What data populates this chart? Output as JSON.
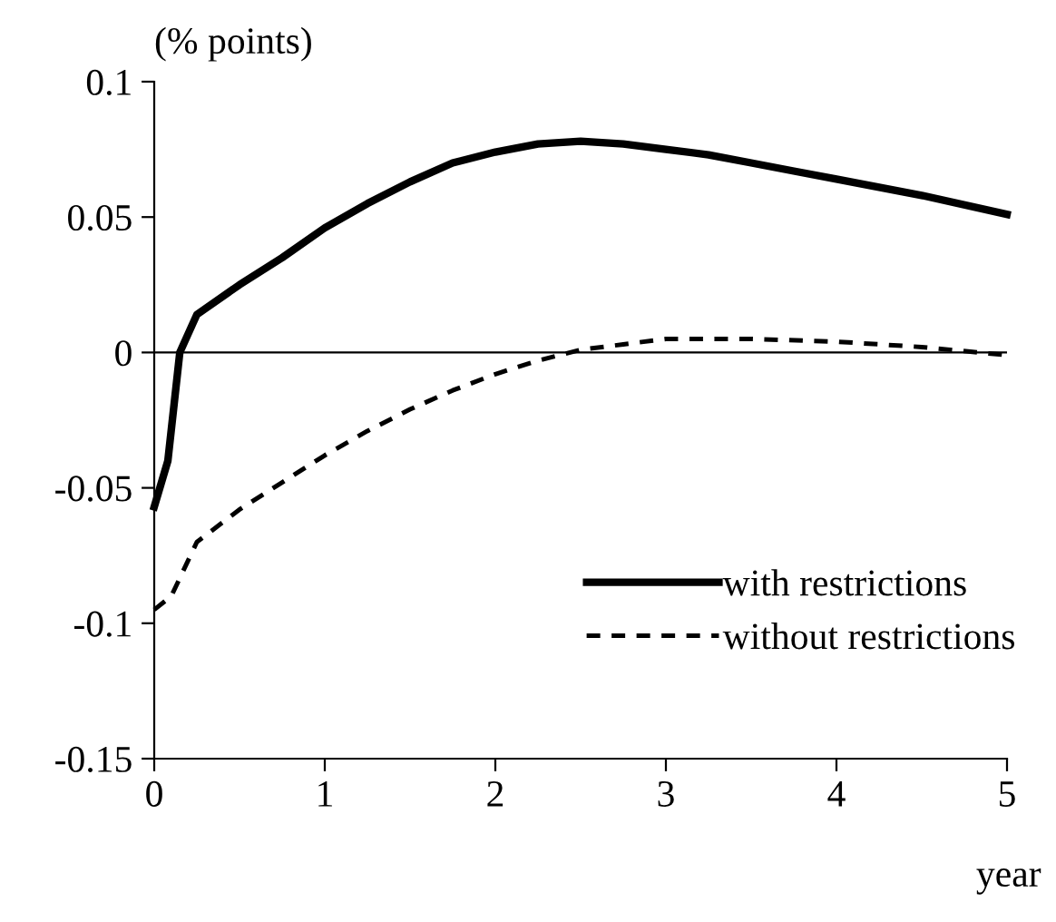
{
  "chart_data": {
    "type": "line",
    "ylabel": "(% points)",
    "xlabel": "year",
    "xlim": [
      0,
      5
    ],
    "xticks": [
      0,
      1,
      2,
      3,
      4,
      5
    ],
    "ylim": [
      -0.15,
      0.1
    ],
    "yticks": [
      -0.15,
      -0.1,
      -0.05,
      0,
      0.05,
      0.1
    ],
    "grid": false,
    "legend": "bottom right",
    "marker": "none",
    "ref_lines": [
      {
        "axis": "y",
        "value": 0,
        "color": "#000000",
        "line_style": "solid"
      }
    ],
    "series": [
      {
        "name": "with restrictions",
        "color": "#000000",
        "line_style": "solid",
        "x": [
          0,
          0.08,
          0.15,
          0.25,
          0.5,
          0.75,
          1,
          1.25,
          1.5,
          1.75,
          2,
          2.25,
          2.5,
          2.75,
          3,
          3.25,
          3.5,
          3.75,
          4,
          4.5,
          5
        ],
        "values": [
          -0.057,
          -0.04,
          0.0,
          0.014,
          0.025,
          0.035,
          0.046,
          0.055,
          0.063,
          0.07,
          0.074,
          0.077,
          0.078,
          0.077,
          0.075,
          0.073,
          0.07,
          0.067,
          0.064,
          0.058,
          0.051
        ]
      },
      {
        "name": "without restrictions",
        "color": "#000000",
        "line_style": "dotted",
        "x": [
          0,
          0.1,
          0.25,
          0.5,
          0.75,
          1,
          1.25,
          1.5,
          1.75,
          2,
          2.25,
          2.5,
          2.75,
          3,
          3.25,
          3.5,
          4,
          4.5,
          5
        ],
        "values": [
          -0.095,
          -0.09,
          -0.07,
          -0.058,
          -0.048,
          -0.038,
          -0.029,
          -0.021,
          -0.014,
          -0.008,
          -0.003,
          0.001,
          0.003,
          0.005,
          0.005,
          0.005,
          0.004,
          0.002,
          -0.001
        ]
      }
    ]
  }
}
